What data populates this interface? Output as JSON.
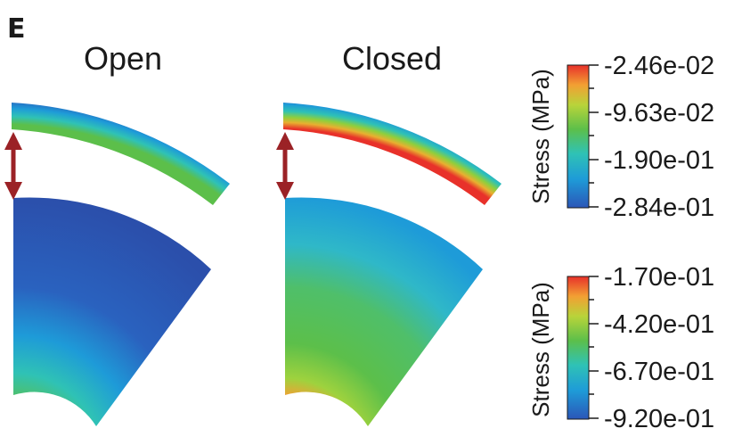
{
  "panel_label": "E",
  "columns": [
    {
      "title": "Open"
    },
    {
      "title": "Closed"
    }
  ],
  "colorbars": [
    {
      "title": "Stress (MPa)",
      "ticks": [
        "-2.46e-02",
        "-9.63e-02",
        "-1.90e-01",
        "-2.84e-01"
      ]
    },
    {
      "title": "Stress (MPa)",
      "ticks": [
        "-1.70e-01",
        "-4.20e-01",
        "-6.70e-01",
        "-9.20e-01"
      ]
    }
  ],
  "colors": {
    "colormap": [
      "#2b56b8",
      "#1e9bd8",
      "#2fc2b5",
      "#5cbf4a",
      "#b8d43a",
      "#f2a033",
      "#e8312a"
    ],
    "arrow": "#9b2226"
  }
}
